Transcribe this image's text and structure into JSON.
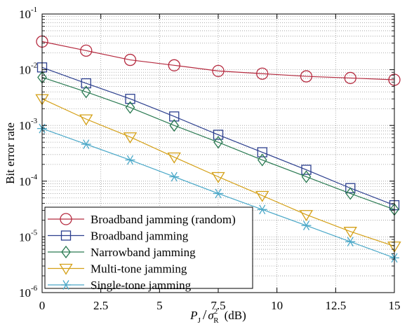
{
  "chart_data": {
    "type": "line",
    "xlabel": {
      "var": "P",
      "var_sub": "J",
      "sep": "/",
      "den": "σ",
      "den_sup": "2",
      "den_sub": "R",
      "unit": "(dB)"
    },
    "ylabel": "Bit error rate",
    "x_range": [
      0,
      15
    ],
    "y_range": [
      1e-06,
      0.1
    ],
    "y_scale": "log",
    "grid": true,
    "x_ticks": [
      0,
      2.5,
      5,
      7.5,
      10,
      12.5,
      15
    ],
    "x_tick_labels": [
      "0",
      "2.5",
      "5",
      "7.5",
      "10",
      "12.5",
      "15"
    ],
    "y_ticks": [
      {
        "value": 1e-06,
        "base": "10",
        "exp": "-6"
      },
      {
        "value": 1e-05,
        "base": "10",
        "exp": "-5"
      },
      {
        "value": 0.0001,
        "base": "10",
        "exp": "-4"
      },
      {
        "value": 0.001,
        "base": "10",
        "exp": "-3"
      },
      {
        "value": 0.01,
        "base": "10",
        "exp": "-2"
      },
      {
        "value": 0.1,
        "base": "10",
        "exp": "-1"
      }
    ],
    "legend_position": "bottom-left",
    "series": [
      {
        "name": "Broadband jamming (random)",
        "color": "#b52a3f",
        "marker": "circle",
        "x": [
          0,
          1.875,
          3.75,
          5.625,
          7.5,
          9.375,
          11.25,
          13.125,
          15
        ],
        "y": [
          0.032,
          0.022,
          0.015,
          0.012,
          0.0095,
          0.0085,
          0.0076,
          0.0071,
          0.0066
        ]
      },
      {
        "name": "Broadband jamming",
        "color": "#2c3f8e",
        "marker": "square",
        "x": [
          0,
          1.875,
          3.75,
          5.625,
          7.5,
          9.375,
          11.25,
          13.125,
          15
        ],
        "y": [
          0.011,
          0.0057,
          0.003,
          0.00145,
          0.00068,
          0.00033,
          0.00016,
          7.5e-05,
          3.7e-05
        ]
      },
      {
        "name": "Narrowband jamming",
        "color": "#2a7a52",
        "marker": "diamond",
        "x": [
          0,
          1.875,
          3.75,
          5.625,
          7.5,
          9.375,
          11.25,
          13.125,
          15
        ],
        "y": [
          0.0073,
          0.004,
          0.0021,
          0.001,
          0.0005,
          0.00024,
          0.00012,
          6e-05,
          3.1e-05
        ]
      },
      {
        "name": "Multi-tone jamming",
        "color": "#d4a017",
        "marker": "triangle-down",
        "x": [
          0,
          1.875,
          3.75,
          5.625,
          7.5,
          9.375,
          11.25,
          13.125,
          15
        ],
        "y": [
          0.003,
          0.0013,
          0.00062,
          0.00027,
          0.00012,
          5.5e-05,
          2.5e-05,
          1.25e-05,
          6.8e-06
        ]
      },
      {
        "name": "Single-tone  jamming",
        "color": "#4aa8c8",
        "marker": "asterisk",
        "x": [
          0,
          1.875,
          3.75,
          5.625,
          7.5,
          9.375,
          11.25,
          13.125,
          15
        ],
        "y": [
          0.00088,
          0.00046,
          0.00024,
          0.00012,
          6e-05,
          3.1e-05,
          1.6e-05,
          8.2e-06,
          4.2e-06
        ]
      }
    ]
  }
}
